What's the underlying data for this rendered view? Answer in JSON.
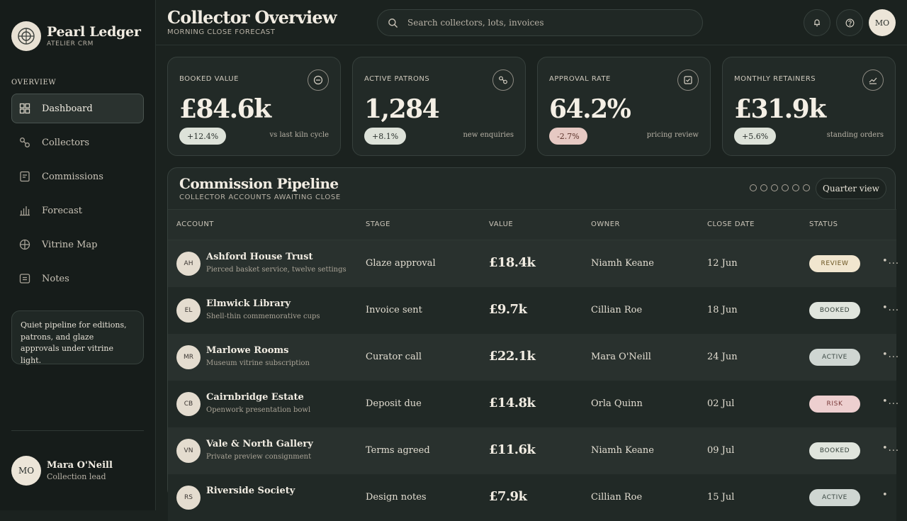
{
  "brand": {
    "name": "Pearl Ledger",
    "subtitle": "ATELIER CRM"
  },
  "sidebar": {
    "section": "OVERVIEW",
    "items": [
      {
        "label": "Dashboard",
        "icon": "grid-icon",
        "active": true
      },
      {
        "label": "Collectors",
        "icon": "link-icon"
      },
      {
        "label": "Commissions",
        "icon": "document-icon"
      },
      {
        "label": "Forecast",
        "icon": "bar-chart-icon"
      },
      {
        "label": "Vitrine Map",
        "icon": "globe-icon"
      },
      {
        "label": "Notes",
        "icon": "note-icon"
      }
    ],
    "note": "Quiet pipeline for editions, patrons, and glaze approvals under vitrine light.",
    "user": {
      "initials": "MO",
      "name": "Mara O'Neill",
      "role": "Collection lead"
    }
  },
  "header": {
    "title": "Collector Overview",
    "subtitle": "MORNING CLOSE FORECAST",
    "search_placeholder": "Search collectors, lots, invoices",
    "avatar": "MO"
  },
  "kpis": [
    {
      "label": "BOOKED VALUE",
      "value": "£84.6k",
      "delta": "+12.4%",
      "note": "vs last kiln cycle",
      "icon": "minus-circle-icon",
      "trend": "up"
    },
    {
      "label": "ACTIVE PATRONS",
      "value": "1,284",
      "delta": "+8.1%",
      "note": "new enquiries",
      "icon": "link-icon",
      "trend": "up"
    },
    {
      "label": "APPROVAL RATE",
      "value": "64.2%",
      "delta": "-2.7%",
      "note": "pricing review",
      "icon": "checkbox-icon",
      "trend": "down"
    },
    {
      "label": "MONTHLY RETAINERS",
      "value": "£31.9k",
      "delta": "+5.6%",
      "note": "standing orders",
      "icon": "trend-icon",
      "trend": "up"
    }
  ],
  "pipeline": {
    "title": "Commission Pipeline",
    "subtitle": "COLLECTOR ACCOUNTS AWAITING CLOSE",
    "view_button": "Quarter view",
    "columns": [
      "ACCOUNT",
      "STAGE",
      "VALUE",
      "OWNER",
      "CLOSE DATE",
      "STATUS"
    ],
    "rows": [
      {
        "initials": "AH",
        "name": "Ashford House Trust",
        "desc": "Pierced basket service, twelve settings",
        "stage": "Glaze approval",
        "value": "£18.4k",
        "owner": "Niamh Keane",
        "date": "12 Jun",
        "status": "REVIEW",
        "status_kind": "review"
      },
      {
        "initials": "EL",
        "name": "Elmwick Library",
        "desc": "Shell-thin commemorative cups",
        "stage": "Invoice sent",
        "value": "£9.7k",
        "owner": "Cillian Roe",
        "date": "18 Jun",
        "status": "BOOKED",
        "status_kind": "booked"
      },
      {
        "initials": "MR",
        "name": "Marlowe Rooms",
        "desc": "Museum vitrine subscription",
        "stage": "Curator call",
        "value": "£22.1k",
        "owner": "Mara O'Neill",
        "date": "24 Jun",
        "status": "ACTIVE",
        "status_kind": "active"
      },
      {
        "initials": "CB",
        "name": "Cairnbridge Estate",
        "desc": "Openwork presentation bowl",
        "stage": "Deposit due",
        "value": "£14.8k",
        "owner": "Orla Quinn",
        "date": "02 Jul",
        "status": "RISK",
        "status_kind": "risk"
      },
      {
        "initials": "VN",
        "name": "Vale & North Gallery",
        "desc": "Private preview consignment",
        "stage": "Terms agreed",
        "value": "£11.6k",
        "owner": "Niamh Keane",
        "date": "09 Jul",
        "status": "BOOKED",
        "status_kind": "booked"
      },
      {
        "initials": "RS",
        "name": "Riverside Society",
        "desc": "",
        "stage": "Design notes",
        "value": "£7.9k",
        "owner": "Cillian Roe",
        "date": "15 Jul",
        "status": "ACTIVE",
        "status_kind": "active"
      }
    ]
  },
  "colors": {
    "background": "#1b221f",
    "sidebar": "#161c1a",
    "card": "#222a27",
    "accent": "#ece5d8"
  }
}
